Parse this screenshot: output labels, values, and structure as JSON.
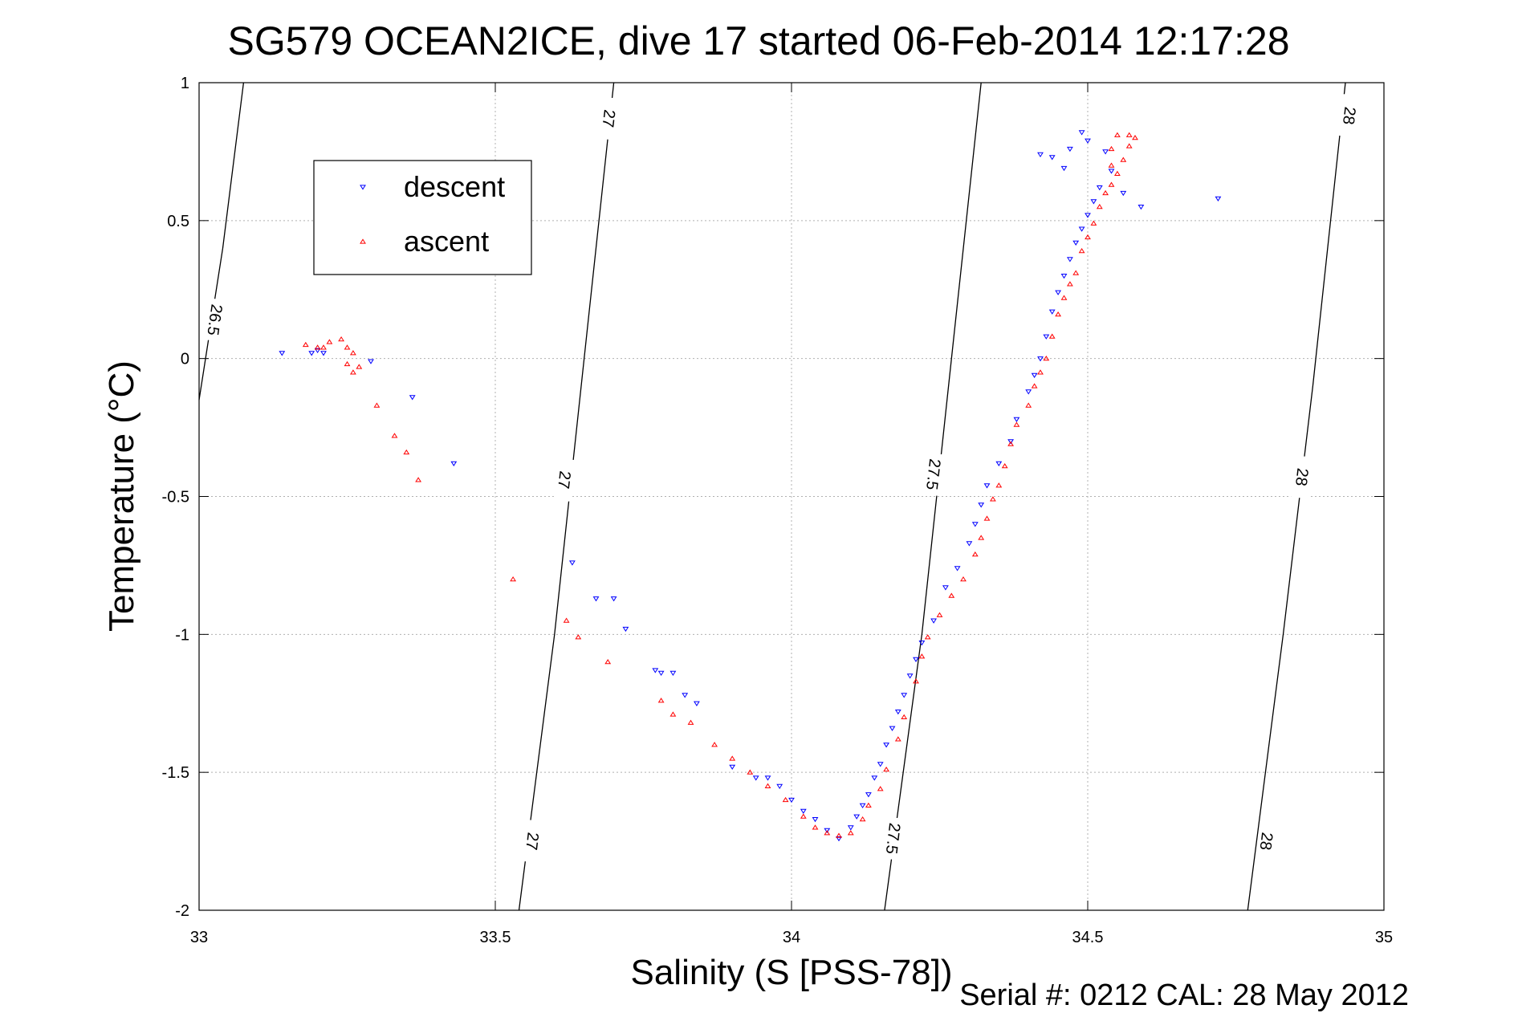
{
  "chart_data": {
    "type": "scatter",
    "title": "SG579 OCEAN2ICE, dive 17 started 06-Feb-2014 12:17:28",
    "xlabel": "Salinity (S [PSS-78])",
    "ylabel": "Temperature (°C)",
    "xlim": [
      33,
      35
    ],
    "ylim": [
      -2,
      1
    ],
    "xticks": [
      33,
      33.5,
      34,
      34.5,
      35
    ],
    "yticks": [
      -2,
      -1.5,
      -1,
      -0.5,
      0,
      0.5,
      1
    ],
    "xtick_labels": [
      "33",
      "33.5",
      "34",
      "34.5",
      "35"
    ],
    "ytick_labels": [
      "-2",
      "-1.5",
      "-1",
      "-0.5",
      "0",
      "0.5",
      "1"
    ],
    "grid": true,
    "legend_position": "upper-left",
    "footer": "Serial #: 0212  CAL: 28 May 2012",
    "contours": [
      {
        "label": "26.5",
        "points": [
          [
            33.0,
            -0.15
          ],
          [
            33.04,
            0.4
          ],
          [
            33.075,
            1.0
          ]
        ],
        "label_positions": [
          [
            33.027,
            0.14
          ]
        ]
      },
      {
        "label": "27",
        "points": [
          [
            33.54,
            -2.0
          ],
          [
            33.6,
            -1.0
          ],
          [
            33.64,
            -0.2
          ],
          [
            33.7,
            1.0
          ]
        ],
        "label_positions": [
          [
            33.563,
            -1.75
          ],
          [
            33.617,
            -0.44
          ],
          [
            33.692,
            0.87
          ]
        ]
      },
      {
        "label": "27.5",
        "points": [
          [
            34.157,
            -2.0
          ],
          [
            34.22,
            -1.0
          ],
          [
            34.265,
            -0.1
          ],
          [
            34.32,
            1.0
          ]
        ],
        "label_positions": [
          [
            34.172,
            -1.74
          ],
          [
            34.24,
            -0.42
          ]
        ]
      },
      {
        "label": "28",
        "points": [
          [
            34.77,
            -2.0
          ],
          [
            34.83,
            -1.0
          ],
          [
            34.88,
            -0.1
          ],
          [
            34.935,
            1.0
          ]
        ],
        "label_positions": [
          [
            34.802,
            -1.75
          ],
          [
            34.862,
            -0.43
          ],
          [
            34.942,
            0.88
          ]
        ]
      }
    ],
    "series": [
      {
        "name": "descent",
        "color": "#0000ff",
        "marker": "triangle-down",
        "points": [
          [
            33.14,
            0.02
          ],
          [
            33.19,
            0.02
          ],
          [
            33.2,
            0.03
          ],
          [
            33.21,
            0.02
          ],
          [
            33.29,
            -0.01
          ],
          [
            33.36,
            -0.14
          ],
          [
            33.43,
            -0.38
          ],
          [
            33.63,
            -0.74
          ],
          [
            33.67,
            -0.87
          ],
          [
            33.7,
            -0.87
          ],
          [
            33.72,
            -0.98
          ],
          [
            33.77,
            -1.13
          ],
          [
            33.78,
            -1.14
          ],
          [
            33.8,
            -1.14
          ],
          [
            33.82,
            -1.22
          ],
          [
            33.84,
            -1.25
          ],
          [
            33.9,
            -1.48
          ],
          [
            33.94,
            -1.52
          ],
          [
            33.96,
            -1.52
          ],
          [
            33.98,
            -1.55
          ],
          [
            34.0,
            -1.6
          ],
          [
            34.02,
            -1.64
          ],
          [
            34.04,
            -1.67
          ],
          [
            34.06,
            -1.71
          ],
          [
            34.08,
            -1.74
          ],
          [
            34.1,
            -1.7
          ],
          [
            34.11,
            -1.66
          ],
          [
            34.12,
            -1.62
          ],
          [
            34.13,
            -1.58
          ],
          [
            34.14,
            -1.52
          ],
          [
            34.15,
            -1.47
          ],
          [
            34.16,
            -1.4
          ],
          [
            34.17,
            -1.34
          ],
          [
            34.18,
            -1.28
          ],
          [
            34.19,
            -1.22
          ],
          [
            34.2,
            -1.15
          ],
          [
            34.21,
            -1.09
          ],
          [
            34.22,
            -1.03
          ],
          [
            34.24,
            -0.95
          ],
          [
            34.26,
            -0.83
          ],
          [
            34.28,
            -0.76
          ],
          [
            34.3,
            -0.67
          ],
          [
            34.31,
            -0.6
          ],
          [
            34.32,
            -0.53
          ],
          [
            34.33,
            -0.46
          ],
          [
            34.35,
            -0.38
          ],
          [
            34.37,
            -0.3
          ],
          [
            34.38,
            -0.22
          ],
          [
            34.4,
            -0.12
          ],
          [
            34.41,
            -0.06
          ],
          [
            34.42,
            0.0
          ],
          [
            34.43,
            0.08
          ],
          [
            34.44,
            0.17
          ],
          [
            34.45,
            0.24
          ],
          [
            34.46,
            0.3
          ],
          [
            34.47,
            0.36
          ],
          [
            34.48,
            0.42
          ],
          [
            34.49,
            0.47
          ],
          [
            34.5,
            0.52
          ],
          [
            34.51,
            0.57
          ],
          [
            34.52,
            0.62
          ],
          [
            34.54,
            0.68
          ],
          [
            34.53,
            0.75
          ],
          [
            34.5,
            0.79
          ],
          [
            34.49,
            0.82
          ],
          [
            34.47,
            0.76
          ],
          [
            34.44,
            0.73
          ],
          [
            34.42,
            0.74
          ],
          [
            34.46,
            0.69
          ],
          [
            34.56,
            0.6
          ],
          [
            34.59,
            0.55
          ],
          [
            34.72,
            0.58
          ]
        ]
      },
      {
        "name": "ascent",
        "color": "#ff0000",
        "marker": "triangle-up",
        "points": [
          [
            33.18,
            0.05
          ],
          [
            33.2,
            0.04
          ],
          [
            33.21,
            0.04
          ],
          [
            33.22,
            0.06
          ],
          [
            33.24,
            0.07
          ],
          [
            33.25,
            0.04
          ],
          [
            33.26,
            0.02
          ],
          [
            33.25,
            -0.02
          ],
          [
            33.26,
            -0.05
          ],
          [
            33.27,
            -0.03
          ],
          [
            33.3,
            -0.17
          ],
          [
            33.33,
            -0.28
          ],
          [
            33.35,
            -0.34
          ],
          [
            33.37,
            -0.44
          ],
          [
            33.53,
            -0.8
          ],
          [
            33.62,
            -0.95
          ],
          [
            33.64,
            -1.01
          ],
          [
            33.69,
            -1.1
          ],
          [
            33.78,
            -1.24
          ],
          [
            33.8,
            -1.29
          ],
          [
            33.83,
            -1.32
          ],
          [
            33.87,
            -1.4
          ],
          [
            33.9,
            -1.45
          ],
          [
            33.93,
            -1.5
          ],
          [
            33.96,
            -1.55
          ],
          [
            33.99,
            -1.6
          ],
          [
            34.02,
            -1.66
          ],
          [
            34.04,
            -1.7
          ],
          [
            34.06,
            -1.72
          ],
          [
            34.08,
            -1.73
          ],
          [
            34.1,
            -1.72
          ],
          [
            34.12,
            -1.67
          ],
          [
            34.13,
            -1.62
          ],
          [
            34.15,
            -1.56
          ],
          [
            34.16,
            -1.49
          ],
          [
            34.18,
            -1.38
          ],
          [
            34.19,
            -1.3
          ],
          [
            34.21,
            -1.17
          ],
          [
            34.22,
            -1.08
          ],
          [
            34.23,
            -1.01
          ],
          [
            34.25,
            -0.93
          ],
          [
            34.27,
            -0.86
          ],
          [
            34.29,
            -0.8
          ],
          [
            34.31,
            -0.71
          ],
          [
            34.32,
            -0.65
          ],
          [
            34.33,
            -0.58
          ],
          [
            34.34,
            -0.51
          ],
          [
            34.35,
            -0.46
          ],
          [
            34.36,
            -0.39
          ],
          [
            34.37,
            -0.31
          ],
          [
            34.38,
            -0.24
          ],
          [
            34.4,
            -0.17
          ],
          [
            34.41,
            -0.1
          ],
          [
            34.42,
            -0.05
          ],
          [
            34.43,
            0.0
          ],
          [
            34.44,
            0.08
          ],
          [
            34.45,
            0.16
          ],
          [
            34.46,
            0.22
          ],
          [
            34.47,
            0.27
          ],
          [
            34.48,
            0.31
          ],
          [
            34.49,
            0.39
          ],
          [
            34.5,
            0.44
          ],
          [
            34.51,
            0.49
          ],
          [
            34.52,
            0.55
          ],
          [
            34.53,
            0.6
          ],
          [
            34.54,
            0.63
          ],
          [
            34.55,
            0.67
          ],
          [
            34.56,
            0.72
          ],
          [
            34.57,
            0.77
          ],
          [
            34.58,
            0.8
          ],
          [
            34.57,
            0.81
          ],
          [
            34.55,
            0.81
          ],
          [
            34.54,
            0.76
          ],
          [
            34.54,
            0.7
          ]
        ]
      }
    ]
  }
}
